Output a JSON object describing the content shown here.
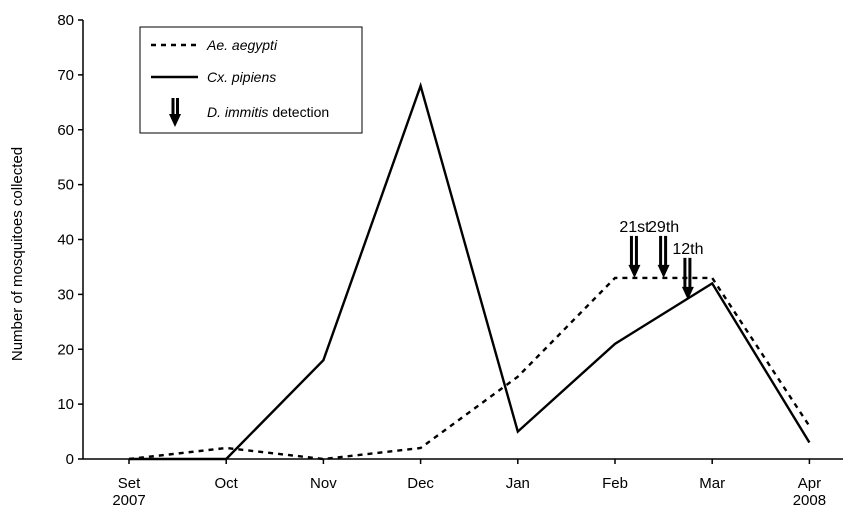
{
  "chart_data": {
    "type": "line",
    "title": "",
    "ylabel": "Number of mosquitoes collected",
    "xlabel": "",
    "ylim": [
      0,
      80
    ],
    "yticks": [
      0,
      10,
      20,
      30,
      40,
      50,
      60,
      70,
      80
    ],
    "categories": [
      {
        "label": "Set",
        "year": "2007"
      },
      {
        "label": "Oct",
        "year": ""
      },
      {
        "label": "Nov",
        "year": ""
      },
      {
        "label": "Dec",
        "year": ""
      },
      {
        "label": "Jan",
        "year": ""
      },
      {
        "label": "Feb",
        "year": ""
      },
      {
        "label": "Mar",
        "year": ""
      },
      {
        "label": "Apr",
        "year": "2008"
      }
    ],
    "series": [
      {
        "name_italic": "Ae. aegypti",
        "style": "dashed",
        "color": "#000000",
        "points": [
          {
            "x": 0,
            "y": 0
          },
          {
            "x": 1,
            "y": 2
          },
          {
            "x": 1.5,
            "y": 1
          },
          {
            "x": 2,
            "y": 0
          },
          {
            "x": 3,
            "y": 2
          },
          {
            "x": 4,
            "y": 15
          },
          {
            "x": 5,
            "y": 33
          },
          {
            "x": 6,
            "y": 33
          },
          {
            "x": 7,
            "y": 6
          }
        ]
      },
      {
        "name_italic": "Cx. pipiens",
        "style": "solid",
        "color": "#000000",
        "points": [
          {
            "x": 0,
            "y": 0
          },
          {
            "x": 1,
            "y": 0
          },
          {
            "x": 2,
            "y": 18
          },
          {
            "x": 3,
            "y": 68
          },
          {
            "x": 4,
            "y": 5
          },
          {
            "x": 5,
            "y": 21
          },
          {
            "x": 6,
            "y": 32
          },
          {
            "x": 7,
            "y": 3
          }
        ]
      }
    ],
    "legend": {
      "position": "top-left",
      "items": [
        {
          "italic": "Ae. aegypti",
          "rest": ""
        },
        {
          "italic": "Cx. pipiens",
          "rest": ""
        },
        {
          "italic": "D. immitis",
          "rest": " detection"
        }
      ]
    },
    "annotations": [
      {
        "label": "21st",
        "x": 5.2,
        "tip_y": 33
      },
      {
        "label": "29th",
        "x": 5.5,
        "tip_y": 33
      },
      {
        "label": "12th",
        "x": 5.75,
        "tip_y": 29
      }
    ],
    "grid": false
  }
}
